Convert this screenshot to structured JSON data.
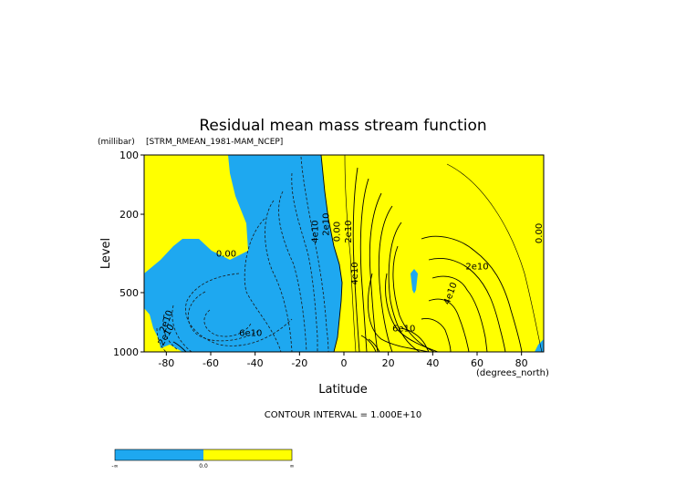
{
  "chart_data": {
    "type": "contour",
    "title": "Residual mean mass stream function",
    "subtitle": "[STRM_RMEAN_1981-MAM_NCEP]",
    "xlabel": "Latitude",
    "ylabel": "Level",
    "x_units": "(degrees_north)",
    "y_units": "(millibar)",
    "xlim": [
      -90,
      90
    ],
    "ylim": [
      1000,
      100
    ],
    "y_scale": "log",
    "x_ticks": [
      -80,
      -60,
      -40,
      -20,
      0,
      20,
      40,
      60,
      80
    ],
    "x_tick_labels": [
      "-80",
      "-60",
      "-40",
      "-20",
      "0",
      "20",
      "40",
      "60",
      "80"
    ],
    "y_ticks": [
      100,
      200,
      500,
      1000
    ],
    "y_tick_labels": [
      "100",
      "200",
      "500",
      "1000"
    ],
    "contour_interval_text": "CONTOUR INTERVAL = 1.000E+10",
    "contour_labels": [
      {
        "text": "0.00",
        "lat": -53,
        "p": 318
      },
      {
        "text": "2e10",
        "lat": -8,
        "p": 225
      },
      {
        "text": "4e10",
        "lat": -13,
        "p": 245
      },
      {
        "text": "0.00",
        "lat": -3,
        "p": 245
      },
      {
        "text": "2e10",
        "lat": 2,
        "p": 245
      },
      {
        "text": "4e10",
        "lat": 5,
        "p": 400
      },
      {
        "text": "2e10",
        "lat": 60,
        "p": 370
      },
      {
        "text": "4e10",
        "lat": 48,
        "p": 505
      },
      {
        "text": "6e10",
        "lat": 27,
        "p": 760
      },
      {
        "text": "6e10",
        "lat": -42,
        "p": 805
      },
      {
        "text": "2e10",
        "lat": -80,
        "p": 700
      },
      {
        "text": "2e10",
        "lat": -80,
        "p": 820
      },
      {
        "text": "0.00",
        "lat": 88,
        "p": 250
      }
    ],
    "fill_colors": {
      "negative": "#1ea8f0",
      "positive": "#ffff00"
    },
    "colorbar": {
      "labels": [
        "-∞",
        "0.0",
        "∞"
      ],
      "colors": [
        "#1ea8f0",
        "#ffff00"
      ]
    },
    "grid": false
  }
}
